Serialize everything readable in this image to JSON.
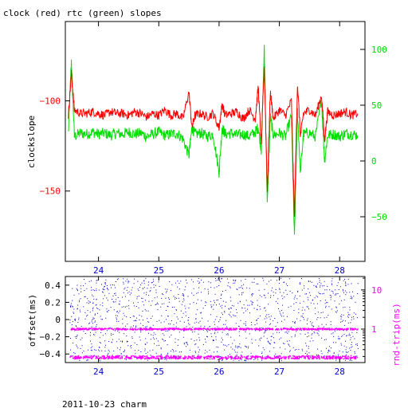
{
  "title": "clock (red) rtc (green) slopes",
  "footer": "2011-10-23 charm",
  "colors": {
    "clock": "#ff0000",
    "rtc": "#00dd00",
    "offset": "#0000cc",
    "roundtrip": "#ff00ff",
    "axis": "#000000"
  },
  "chart_data": [
    {
      "type": "line",
      "ylabel": "clockslope",
      "y2label": "",
      "xlim": [
        23.45,
        28.42
      ],
      "ylim": [
        -189,
        -56
      ],
      "y2lim": [
        -90,
        125
      ],
      "x_ticks": [
        24,
        25,
        26,
        27,
        28
      ],
      "y_ticks": [
        -150,
        -100
      ],
      "y2_ticks": [
        -50,
        0,
        50,
        100
      ],
      "series": [
        {
          "axis": "left",
          "points": [
            [
              23.5,
              -108
            ],
            [
              23.55,
              -85
            ],
            [
              23.6,
              -105
            ],
            [
              23.7,
              -107
            ],
            [
              23.8,
              -107
            ],
            [
              23.9,
              -106
            ],
            [
              24.0,
              -107
            ],
            [
              24.1,
              -108
            ],
            [
              24.2,
              -106
            ],
            [
              24.3,
              -107
            ],
            [
              24.4,
              -107
            ],
            [
              24.5,
              -108
            ],
            [
              24.6,
              -106
            ],
            [
              24.7,
              -107
            ],
            [
              24.8,
              -109
            ],
            [
              24.9,
              -107
            ],
            [
              25.0,
              -108
            ],
            [
              25.1,
              -105
            ],
            [
              25.2,
              -108
            ],
            [
              25.3,
              -107
            ],
            [
              25.4,
              -110
            ],
            [
              25.5,
              -95
            ],
            [
              25.55,
              -115
            ],
            [
              25.6,
              -108
            ],
            [
              25.7,
              -107
            ],
            [
              25.8,
              -109
            ],
            [
              25.9,
              -107
            ],
            [
              26.0,
              -115
            ],
            [
              26.05,
              -102
            ],
            [
              26.1,
              -108
            ],
            [
              26.2,
              -107
            ],
            [
              26.3,
              -106
            ],
            [
              26.4,
              -110
            ],
            [
              26.5,
              -105
            ],
            [
              26.6,
              -110
            ],
            [
              26.65,
              -92
            ],
            [
              26.7,
              -125
            ],
            [
              26.75,
              -80
            ],
            [
              26.8,
              -150
            ],
            [
              26.85,
              -95
            ],
            [
              26.9,
              -110
            ],
            [
              27.0,
              -105
            ],
            [
              27.1,
              -108
            ],
            [
              27.2,
              -100
            ],
            [
              27.25,
              -165
            ],
            [
              27.3,
              -90
            ],
            [
              27.35,
              -120
            ],
            [
              27.4,
              -107
            ],
            [
              27.5,
              -105
            ],
            [
              27.6,
              -108
            ],
            [
              27.7,
              -97
            ],
            [
              27.75,
              -122
            ],
            [
              27.8,
              -106
            ],
            [
              27.9,
              -108
            ],
            [
              28.0,
              -107
            ],
            [
              28.1,
              -106
            ],
            [
              28.2,
              -108
            ],
            [
              28.3,
              -107
            ]
          ]
        },
        {
          "axis": "right",
          "points": [
            [
              23.5,
              25
            ],
            [
              23.55,
              90
            ],
            [
              23.6,
              22
            ],
            [
              23.7,
              25
            ],
            [
              23.8,
              24
            ],
            [
              23.9,
              26
            ],
            [
              24.0,
              24
            ],
            [
              24.1,
              25
            ],
            [
              24.2,
              23
            ],
            [
              24.3,
              25
            ],
            [
              24.4,
              24
            ],
            [
              24.5,
              26
            ],
            [
              24.6,
              24
            ],
            [
              24.7,
              25
            ],
            [
              24.8,
              22
            ],
            [
              24.9,
              24
            ],
            [
              25.0,
              26
            ],
            [
              25.1,
              23
            ],
            [
              25.2,
              24
            ],
            [
              25.3,
              25
            ],
            [
              25.4,
              20
            ],
            [
              25.5,
              5
            ],
            [
              25.55,
              30
            ],
            [
              25.6,
              24
            ],
            [
              25.7,
              25
            ],
            [
              25.8,
              22
            ],
            [
              25.9,
              24
            ],
            [
              26.0,
              -10
            ],
            [
              26.05,
              30
            ],
            [
              26.1,
              24
            ],
            [
              26.2,
              25
            ],
            [
              26.3,
              23
            ],
            [
              26.4,
              24
            ],
            [
              26.5,
              22
            ],
            [
              26.6,
              26
            ],
            [
              26.65,
              30
            ],
            [
              26.7,
              10
            ],
            [
              26.75,
              100
            ],
            [
              26.8,
              -40
            ],
            [
              26.85,
              40
            ],
            [
              26.9,
              23
            ],
            [
              27.0,
              25
            ],
            [
              27.1,
              22
            ],
            [
              27.2,
              40
            ],
            [
              27.25,
              -70
            ],
            [
              27.3,
              45
            ],
            [
              27.35,
              -10
            ],
            [
              27.4,
              24
            ],
            [
              27.5,
              25
            ],
            [
              27.6,
              22
            ],
            [
              27.7,
              55
            ],
            [
              27.75,
              0
            ],
            [
              27.8,
              23
            ],
            [
              27.9,
              24
            ],
            [
              28.0,
              22
            ],
            [
              28.1,
              25
            ],
            [
              28.2,
              24
            ],
            [
              28.3,
              23
            ]
          ]
        }
      ]
    },
    {
      "type": "scatter",
      "ylabel": "offset(ms)",
      "y2label": "rnd-trip(ms)",
      "xlim": [
        23.45,
        28.42
      ],
      "ylim": [
        -0.5,
        0.5
      ],
      "y2lim": [
        0.14,
        22
      ],
      "y2_scale": "log",
      "x_ticks": [
        24,
        25,
        26,
        27,
        28
      ],
      "y_ticks": [
        -0.4,
        -0.2,
        0,
        0.2,
        0.4
      ],
      "y2_ticks": [
        1,
        10
      ],
      "offset_range": [
        -0.48,
        0.48
      ],
      "roundtrip_bands": [
        1,
        0.19
      ]
    }
  ]
}
